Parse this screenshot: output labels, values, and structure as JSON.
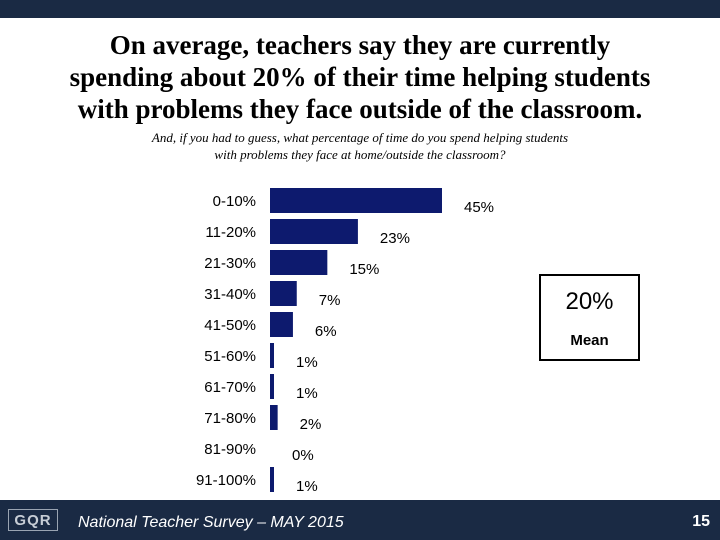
{
  "slide": {
    "title_lines": [
      "On average, teachers say they are currently",
      "spending about 20% of their time helping students",
      "with problems they face outside of the classroom."
    ],
    "subtitle_lines": [
      "And, if you had to guess, what percentage of time do you spend helping students",
      "with problems they face at home/outside the classroom?"
    ]
  },
  "chart_data": {
    "type": "bar",
    "orientation": "horizontal",
    "categories": [
      "0-10%",
      "11-20%",
      "21-30%",
      "31-40%",
      "41-50%",
      "51-60%",
      "61-70%",
      "71-80%",
      "81-90%",
      "91-100%"
    ],
    "values": [
      45,
      23,
      15,
      7,
      6,
      1,
      1,
      2,
      0,
      1
    ],
    "value_labels": [
      "45%",
      "23%",
      "15%",
      "7%",
      "6%",
      "1%",
      "1%",
      "2%",
      "0%",
      "1%"
    ],
    "xlim": [
      0,
      45
    ],
    "grid": false,
    "bar_color": "#0d1a6e"
  },
  "mean_box": {
    "value": "20%",
    "label": "Mean"
  },
  "footer": {
    "logo_text": "GQR",
    "title": "National Teacher Survey – MAY 2015",
    "page_number": "15"
  },
  "colors": {
    "bars": "#1a2a44",
    "bar_fill": "#0d1a6e"
  }
}
